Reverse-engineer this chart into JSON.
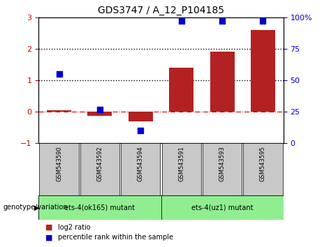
{
  "title": "GDS3747 / A_12_P104185",
  "samples": [
    "GSM543590",
    "GSM543592",
    "GSM543594",
    "GSM543591",
    "GSM543593",
    "GSM543595"
  ],
  "log2_ratio": [
    0.05,
    -0.12,
    -0.3,
    1.4,
    1.9,
    2.6
  ],
  "percentile_rank": [
    55,
    27,
    10,
    97,
    97,
    97
  ],
  "groups": [
    {
      "label": "ets-4(ok165) mutant",
      "indices": [
        0,
        1,
        2
      ],
      "color": "#90ee90"
    },
    {
      "label": "ets-4(uz1) mutant",
      "indices": [
        3,
        4,
        5
      ],
      "color": "#90ee90"
    }
  ],
  "bar_color": "#b22222",
  "dot_color": "#0000cd",
  "ylim_left": [
    -1,
    3
  ],
  "ylim_right": [
    0,
    100
  ],
  "yticks_left": [
    -1,
    0,
    1,
    2,
    3
  ],
  "yticks_right": [
    0,
    25,
    50,
    75,
    100
  ],
  "yticklabels_right": [
    "0",
    "25",
    "50",
    "75",
    "100%"
  ],
  "background_color": "#ffffff",
  "tick_label_color_left": "#cc0000",
  "tick_label_color_right": "#0000cd",
  "genotype_label": "genotype/variation",
  "legend_items": [
    {
      "label": "log2 ratio",
      "color": "#b22222"
    },
    {
      "label": "percentile rank within the sample",
      "color": "#0000cd"
    }
  ],
  "label_box_color": "#c8c8c8",
  "bar_width": 0.6,
  "dot_size": 30
}
